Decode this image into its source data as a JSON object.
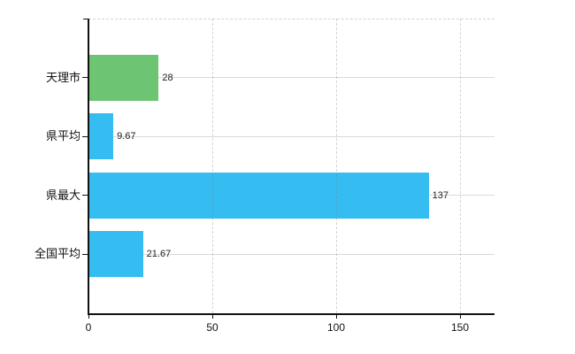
{
  "chart_data": {
    "type": "bar",
    "orientation": "horizontal",
    "title": "",
    "xlabel": "",
    "ylabel": "",
    "categories": [
      "天理市",
      "県平均",
      "県最大",
      "全国平均"
    ],
    "values": [
      28,
      9.67,
      137,
      21.67
    ],
    "value_labels": [
      "28",
      "9.67",
      "137",
      "21.67"
    ],
    "bar_colors": [
      "#6dc473",
      "#35bdf2",
      "#35bdf2",
      "#35bdf2"
    ],
    "x_ticks": [
      0,
      50,
      100,
      150
    ],
    "x_tick_labels": [
      "0",
      "50",
      "100",
      "150"
    ],
    "xlim": [
      0,
      164
    ],
    "grid": true,
    "gridline_style": "vertical dashed, horizontal solid at category centers, dashed top boundary",
    "legend_position": "none",
    "colors": {
      "green_bar": "#6dc473",
      "blue_bar": "#35bdf2",
      "axis": "#111111",
      "gridline": "#d9d9d9",
      "text": "#212121",
      "background": "#ffffff"
    }
  }
}
